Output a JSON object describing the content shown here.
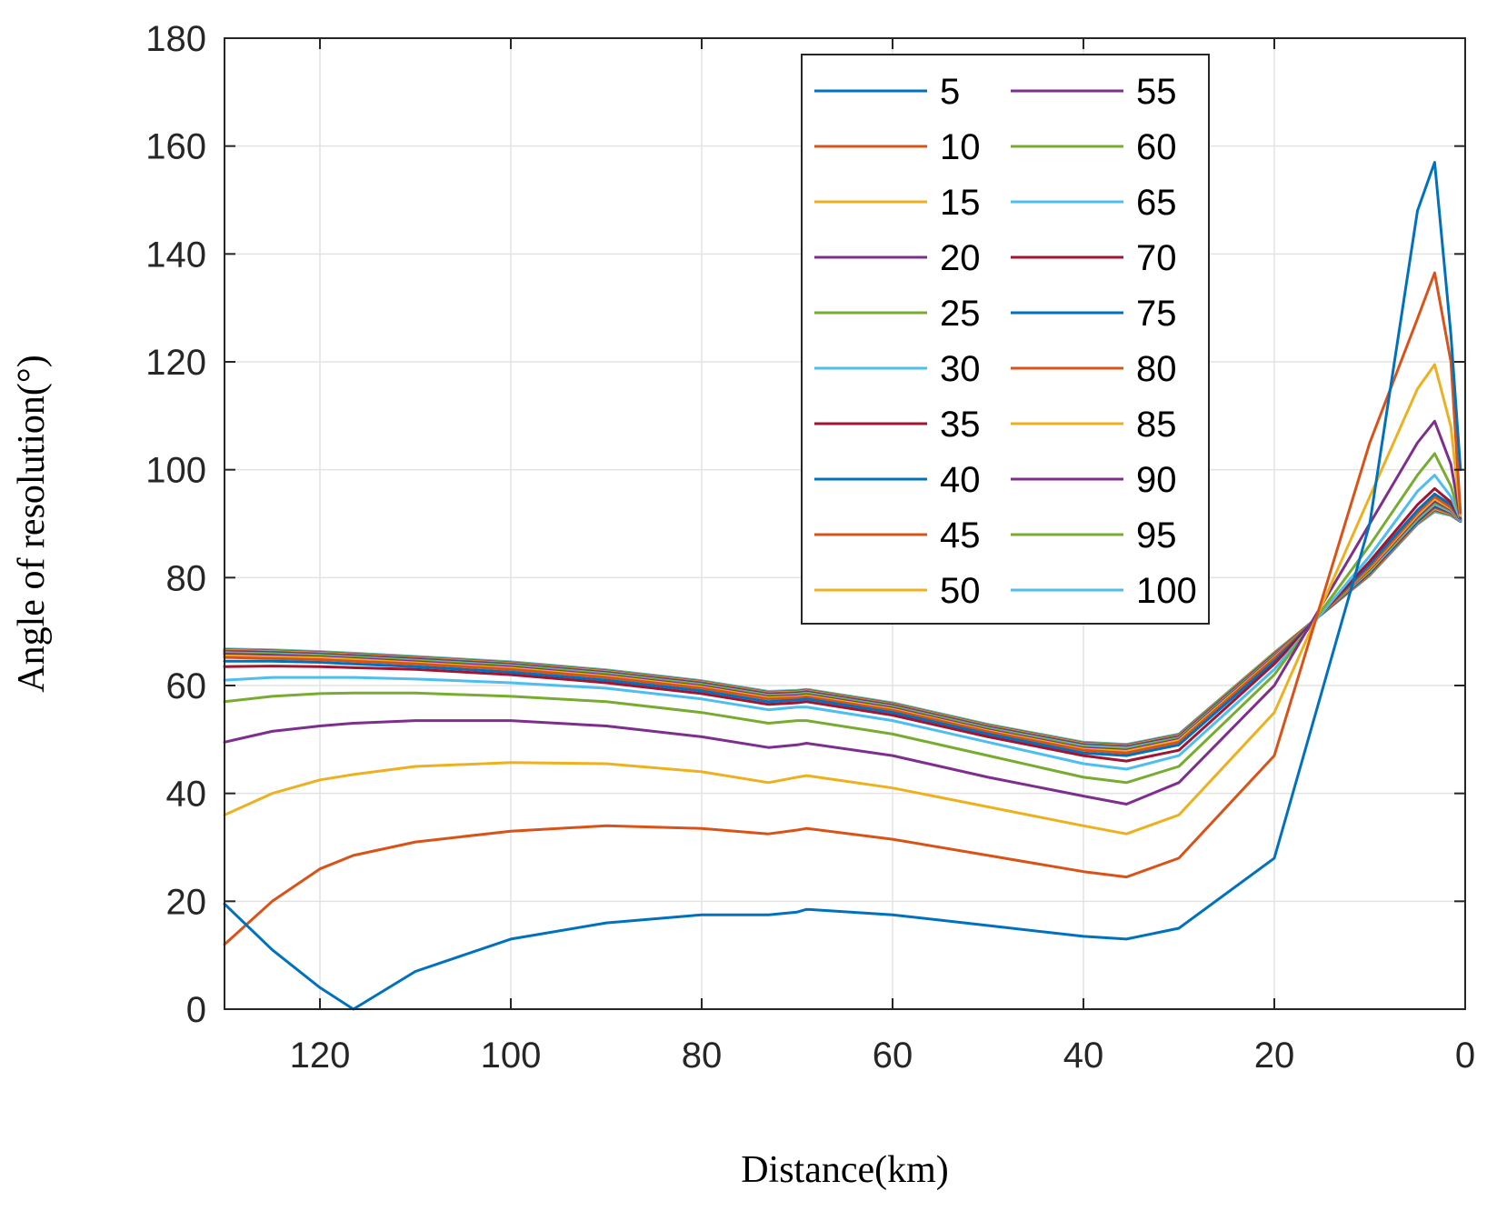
{
  "chart_data": {
    "type": "line",
    "title": "",
    "xlabel": "Distance(km)",
    "ylabel": "Angle of resolution(°)",
    "xlim": [
      130,
      0
    ],
    "ylim": [
      0,
      180
    ],
    "x_reversed": true,
    "xticks": [
      120,
      100,
      80,
      60,
      40,
      20,
      0
    ],
    "yticks": [
      0,
      20,
      40,
      60,
      80,
      100,
      120,
      140,
      160,
      180
    ],
    "xtick_labels": [
      "120",
      "100",
      "80",
      "60",
      "40",
      "20",
      "0"
    ],
    "ytick_labels": [
      "0",
      "20",
      "40",
      "60",
      "80",
      "100",
      "120",
      "140",
      "160",
      "180"
    ],
    "grid": true,
    "legend_position": "top-right",
    "legend_columns": 2,
    "x": [
      130,
      125,
      120,
      116.5,
      110,
      100,
      90,
      80,
      73,
      70,
      69,
      60,
      50,
      40,
      35.5,
      30,
      20,
      10,
      5,
      3.2,
      1.5,
      0.5
    ],
    "series": [
      {
        "name": "5",
        "color": "#0072BD",
        "values": [
          19.5,
          11,
          4,
          0,
          7,
          13,
          16,
          17.5,
          17.5,
          18,
          18.5,
          17.5,
          15.5,
          13.5,
          13,
          15,
          28,
          90,
          148,
          157,
          125,
          100
        ]
      },
      {
        "name": "10",
        "color": "#D95319",
        "values": [
          12,
          20,
          26,
          28.5,
          31,
          33,
          34,
          33.5,
          32.5,
          33.2,
          33.5,
          31.5,
          28.5,
          25.5,
          24.5,
          28,
          47,
          105,
          128,
          136.5,
          120,
          92
        ]
      },
      {
        "name": "15",
        "color": "#EDB120",
        "values": [
          36,
          40,
          42.5,
          43.5,
          45,
          45.7,
          45.5,
          44,
          42,
          43,
          43.3,
          41,
          37.5,
          34,
          32.5,
          36,
          55,
          95,
          115,
          119.5,
          108,
          91.5
        ]
      },
      {
        "name": "20",
        "color": "#7E2F8E",
        "values": [
          49.5,
          51.5,
          52.5,
          53,
          53.5,
          53.5,
          52.5,
          50.5,
          48.5,
          49,
          49.3,
          47,
          43,
          39.5,
          38,
          42,
          60,
          90,
          105,
          109,
          101,
          91
        ]
      },
      {
        "name": "25",
        "color": "#77AC30",
        "values": [
          57,
          58,
          58.5,
          58.6,
          58.6,
          58,
          57,
          55,
          53,
          53.5,
          53.5,
          51,
          47,
          43,
          42,
          45,
          62,
          86,
          99,
          103,
          97,
          91
        ]
      },
      {
        "name": "30",
        "color": "#4DBEEE",
        "values": [
          61,
          61.5,
          61.5,
          61.5,
          61.2,
          60.5,
          59.5,
          57.5,
          55.5,
          56,
          56,
          53.5,
          49.5,
          45.5,
          44.5,
          47,
          63,
          84,
          96,
          99,
          95,
          90.8
        ]
      },
      {
        "name": "35",
        "color": "#A2142F",
        "values": [
          63.5,
          63.6,
          63.5,
          63.3,
          63,
          62,
          60.5,
          58.5,
          56.5,
          56.8,
          57,
          54.5,
          50.5,
          47,
          46,
          48,
          64,
          83,
          93.5,
          96.5,
          94,
          90.8
        ]
      },
      {
        "name": "40",
        "color": "#0072BD",
        "values": [
          64.5,
          64.5,
          64.3,
          64,
          63.5,
          62.5,
          61,
          59,
          57,
          57.3,
          57.5,
          55,
          51,
          47.5,
          47,
          49,
          64.5,
          82.5,
          92.5,
          95.5,
          93.5,
          90.7
        ]
      },
      {
        "name": "45",
        "color": "#D95319",
        "values": [
          65.2,
          65,
          64.8,
          64.5,
          64,
          63,
          61.5,
          59.5,
          57.5,
          57.7,
          57.9,
          55.4,
          51.4,
          48,
          47.5,
          49.5,
          65,
          82,
          92,
          95,
          93,
          90.7
        ]
      },
      {
        "name": "50",
        "color": "#EDB120",
        "values": [
          65.5,
          65.3,
          65.1,
          64.8,
          64.2,
          63.2,
          61.7,
          59.7,
          57.7,
          57.9,
          58.1,
          55.6,
          51.6,
          48.2,
          47.8,
          49.8,
          65.2,
          81.8,
          91.6,
          94.6,
          92.8,
          90.6
        ]
      },
      {
        "name": "55",
        "color": "#7E2F8E",
        "values": [
          65.8,
          65.6,
          65.3,
          65,
          64.4,
          63.4,
          61.9,
          59.9,
          57.9,
          58.1,
          58.3,
          55.8,
          51.8,
          48.4,
          48,
          50,
          65.4,
          81.6,
          91.3,
          94.2,
          92.6,
          90.6
        ]
      },
      {
        "name": "60",
        "color": "#77AC30",
        "values": [
          66,
          65.8,
          65.5,
          65.2,
          64.6,
          63.6,
          62.1,
          60.1,
          58.1,
          58.3,
          58.5,
          56,
          52,
          48.6,
          48.2,
          50.2,
          65.5,
          81.4,
          91,
          93.9,
          92.4,
          90.6
        ]
      },
      {
        "name": "65",
        "color": "#4DBEEE",
        "values": [
          66.1,
          65.9,
          65.6,
          65.3,
          64.7,
          63.7,
          62.2,
          60.2,
          58.2,
          58.4,
          58.6,
          56.1,
          52.1,
          48.8,
          48.4,
          50.3,
          65.6,
          81.2,
          90.8,
          93.6,
          92.2,
          90.5
        ]
      },
      {
        "name": "70",
        "color": "#A2142F",
        "values": [
          66.2,
          66,
          65.7,
          65.4,
          64.8,
          63.8,
          62.3,
          60.3,
          58.3,
          58.5,
          58.7,
          56.2,
          52.2,
          48.9,
          48.5,
          50.4,
          65.7,
          81,
          90.6,
          93.4,
          92.1,
          90.5
        ]
      },
      {
        "name": "75",
        "color": "#0072BD",
        "values": [
          66.3,
          66.1,
          65.8,
          65.5,
          64.9,
          63.9,
          62.4,
          60.4,
          58.4,
          58.6,
          58.8,
          56.3,
          52.3,
          49,
          48.6,
          50.5,
          65.8,
          80.9,
          90.4,
          93.2,
          92,
          90.5
        ]
      },
      {
        "name": "80",
        "color": "#D95319",
        "values": [
          66.4,
          66.2,
          65.9,
          65.6,
          65,
          64,
          62.5,
          60.5,
          58.5,
          58.7,
          58.9,
          56.4,
          52.4,
          49.1,
          48.7,
          50.6,
          65.9,
          80.8,
          90.3,
          93,
          91.9,
          90.5
        ]
      },
      {
        "name": "85",
        "color": "#EDB120",
        "values": [
          66.5,
          66.3,
          66,
          65.7,
          65.1,
          64.1,
          62.6,
          60.6,
          58.6,
          58.8,
          59,
          56.5,
          52.5,
          49.2,
          48.8,
          50.7,
          66,
          80.7,
          90.2,
          92.8,
          91.8,
          90.5
        ]
      },
      {
        "name": "90",
        "color": "#7E2F8E",
        "values": [
          66.6,
          66.4,
          66.1,
          65.8,
          65.2,
          64.2,
          62.7,
          60.7,
          58.7,
          58.9,
          59.1,
          56.6,
          52.6,
          49.3,
          48.9,
          50.8,
          66,
          80.6,
          90.1,
          92.6,
          91.7,
          90.4
        ]
      },
      {
        "name": "95",
        "color": "#77AC30",
        "values": [
          66.7,
          66.5,
          66.2,
          65.9,
          65.3,
          64.3,
          62.8,
          60.8,
          58.8,
          59,
          59.2,
          56.7,
          52.7,
          49.4,
          49,
          50.9,
          66.1,
          80.5,
          90,
          92.4,
          91.6,
          90.4
        ]
      },
      {
        "name": "100",
        "color": "#4DBEEE",
        "values": [
          66.8,
          66.6,
          66.3,
          66,
          65.4,
          64.4,
          62.9,
          60.9,
          58.9,
          59.1,
          59.3,
          56.8,
          52.8,
          49.5,
          49.1,
          51,
          66.1,
          80.4,
          89.9,
          92.2,
          91.5,
          90.4
        ]
      }
    ]
  }
}
